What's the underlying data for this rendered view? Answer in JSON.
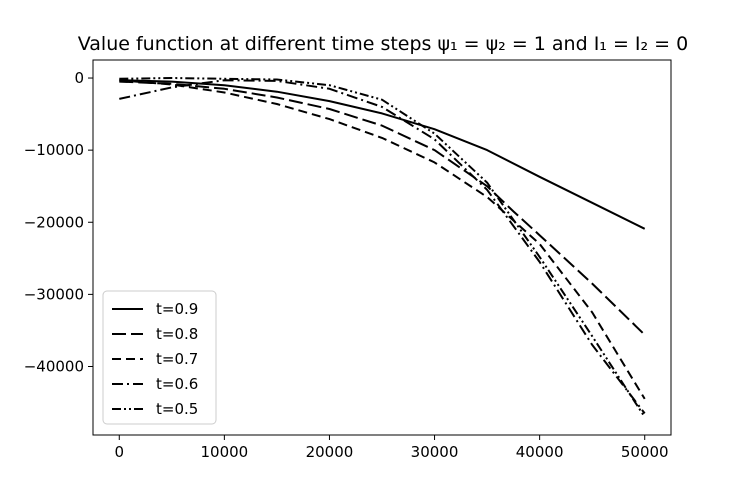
{
  "chart_data": {
    "type": "line",
    "title": "Value function at different time steps ψ₁ = ψ₂ = 1 and I₁ = I₂ = 0",
    "xlabel": "",
    "ylabel": "",
    "xlim": [
      -2500,
      52500
    ],
    "ylim": [
      -49500,
      2500
    ],
    "x_ticks": [
      0,
      10000,
      20000,
      30000,
      40000,
      50000
    ],
    "x_tick_labels": [
      "0",
      "10000",
      "20000",
      "30000",
      "40000",
      "50000"
    ],
    "y_ticks": [
      0,
      -10000,
      -20000,
      -30000,
      -40000
    ],
    "y_tick_labels": [
      "0",
      "−10000",
      "−20000",
      "−30000",
      "−40000"
    ],
    "grid": false,
    "legend_position": "lower-left",
    "series": [
      {
        "name": "t=0.9",
        "style": "solid",
        "x": [
          0,
          5000,
          10000,
          15000,
          20000,
          25000,
          30000,
          35000,
          40000,
          45000,
          50000
        ],
        "y": [
          -300,
          -500,
          -1000,
          -1900,
          -3200,
          -4900,
          -7100,
          -10000,
          -13700,
          -17300,
          -20900
        ]
      },
      {
        "name": "t=0.8",
        "style": "longdash",
        "x": [
          0,
          5000,
          10000,
          15000,
          20000,
          25000,
          30000,
          35000,
          37500,
          40000,
          45000,
          50000
        ],
        "y": [
          -500,
          -800,
          -1500,
          -2700,
          -4300,
          -6600,
          -10000,
          -15000,
          -18500,
          -21800,
          -28500,
          -35600
        ]
      },
      {
        "name": "t=0.7",
        "style": "dash",
        "x": [
          0,
          5000,
          10000,
          15000,
          20000,
          25000,
          30000,
          35000,
          40000,
          45000,
          50000
        ],
        "y": [
          -300,
          -900,
          -2000,
          -3600,
          -5700,
          -8300,
          -11700,
          -16500,
          -23000,
          -32500,
          -44500
        ]
      },
      {
        "name": "t=0.6",
        "style": "dashdot",
        "x": [
          0,
          5000,
          10000,
          15000,
          20000,
          25000,
          30000,
          35000,
          40000,
          45000,
          50000
        ],
        "y": [
          -2900,
          -1300,
          -300,
          -400,
          -1500,
          -4000,
          -8500,
          -15500,
          -25500,
          -37000,
          -46500
        ]
      },
      {
        "name": "t=0.5",
        "style": "dashdotdot",
        "x": [
          0,
          5000,
          10000,
          15000,
          20000,
          25000,
          30000,
          35000,
          40000,
          45000,
          50000
        ],
        "y": [
          -100,
          0,
          -100,
          -200,
          -1000,
          -3000,
          -7700,
          -14500,
          -24800,
          -35800,
          -47000
        ]
      }
    ]
  }
}
